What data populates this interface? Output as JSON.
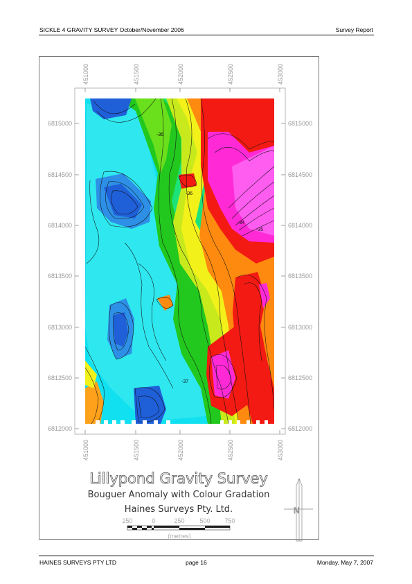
{
  "header": {
    "left": "SICKLE 4 GRAVITY SURVEY October/November 2006",
    "right": "Survey Report"
  },
  "footer": {
    "left": "HAINES SURVEYS PTY LTD",
    "center": "page 16",
    "right": "Monday, May 7, 2007"
  },
  "map": {
    "easting_ticks": [
      "451000",
      "451500",
      "452000",
      "452500",
      "453000"
    ],
    "northing_ticks": [
      "6815000",
      "6814500",
      "6814000",
      "6813500",
      "6813000",
      "6812500",
      "6812000"
    ],
    "contour_labels": [
      "-36",
      "-36",
      "-34",
      "-35",
      "-37"
    ],
    "title": "Lillypond Gravity Survey",
    "subtitle": "Bouguer Anomaly with Colour Gradation",
    "company": "Haines Surveys Pty. Ltd.",
    "scale_ticks": [
      "250",
      "0",
      "250",
      "500",
      "750"
    ],
    "scale_unit": "(metres)",
    "north_label": "N"
  },
  "colors": {
    "blue": "#1f5fd8",
    "cyan": "#11e0f0",
    "green": "#22c81e",
    "yellow": "#f3f11a",
    "orange": "#ff8a10",
    "red": "#f21a12",
    "magenta": "#ff2ad6"
  }
}
